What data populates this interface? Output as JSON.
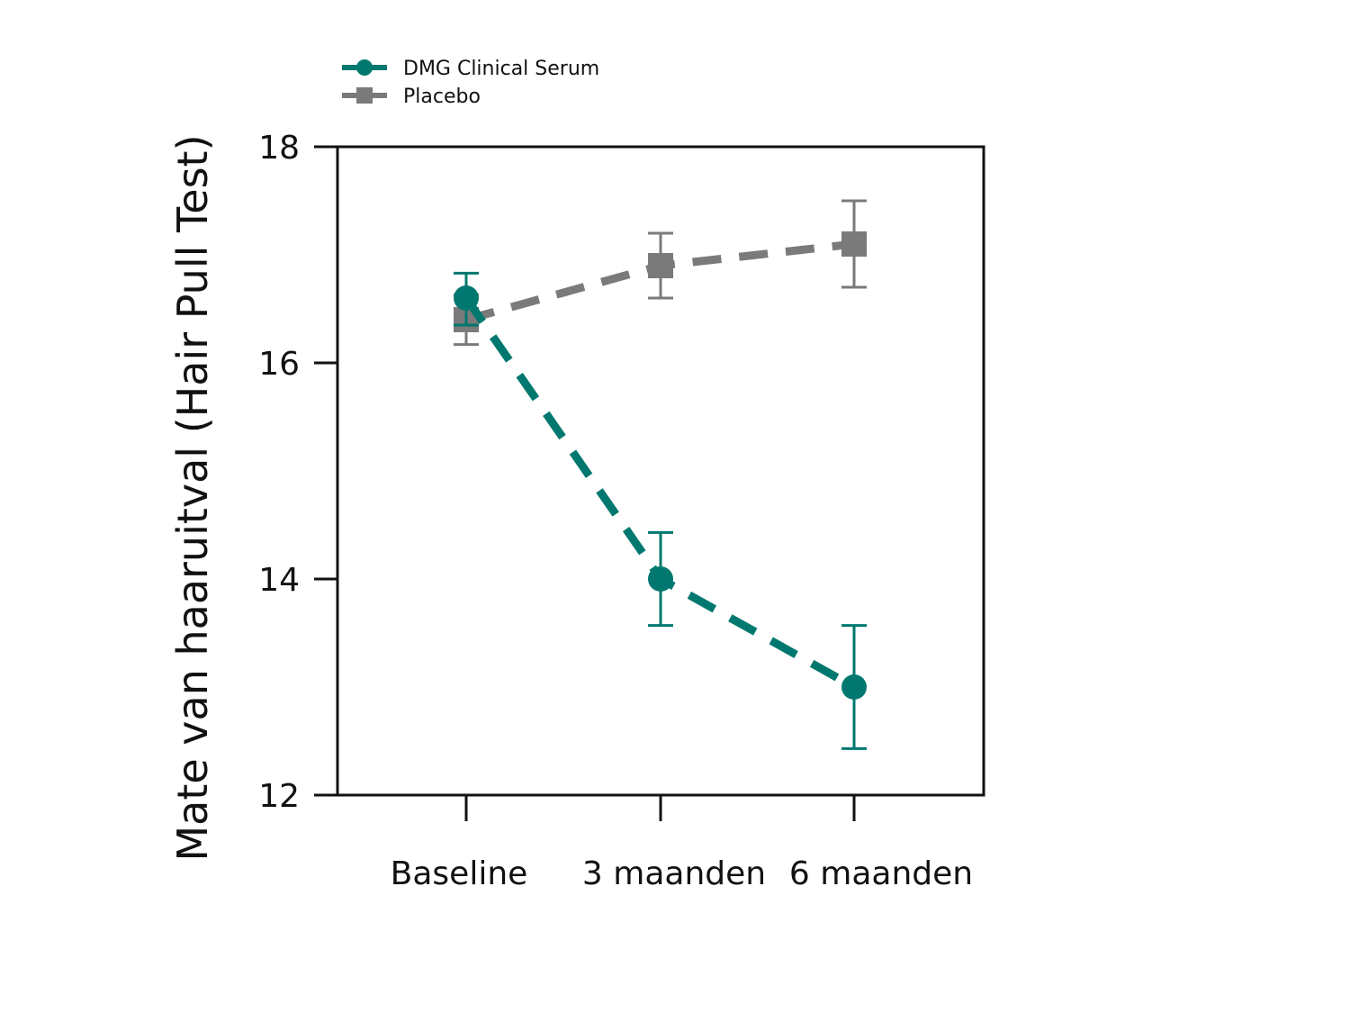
{
  "chart_data": {
    "type": "line",
    "title": "",
    "xlabel": "",
    "ylabel": "Mate van haaruitval  (Hair Pull Test)",
    "categories": [
      "Baseline",
      "3 maanden",
      "6 maanden"
    ],
    "ylim": [
      12,
      18
    ],
    "yticks": [
      12,
      14,
      16,
      18
    ],
    "grid": false,
    "legend_position": "top-left",
    "series": [
      {
        "name": "DMG Clinical Serum",
        "marker": "circle",
        "line_style": "dashed",
        "color": "#00786f",
        "values": [
          16.6,
          14.0,
          13.0
        ],
        "error": [
          [
            16.35,
            16.83
          ],
          [
            13.57,
            14.43
          ],
          [
            12.43,
            13.57
          ]
        ]
      },
      {
        "name": "Placebo",
        "marker": "square",
        "line_style": "dashed",
        "color": "#7a7a7a",
        "values": [
          16.4,
          16.9,
          17.1
        ],
        "error": [
          [
            16.17,
            16.63
          ],
          [
            16.6,
            17.2
          ],
          [
            16.7,
            17.5
          ]
        ]
      }
    ]
  }
}
